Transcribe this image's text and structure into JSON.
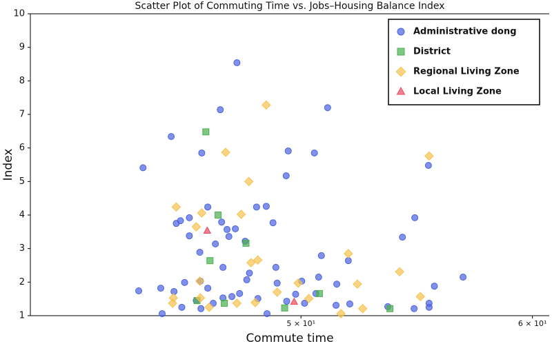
{
  "chart_data": {
    "type": "scatter",
    "title": "Scatter Plot of Commuting Time vs. Jobs–Housing Balance Index",
    "x_label": "Commute time",
    "y_label": "Index",
    "xscale": "log",
    "xlim": [
      40.4,
      60.8
    ],
    "ylim": [
      1,
      10
    ],
    "xticks": [
      {
        "value": 50,
        "label": "5 × 10¹"
      },
      {
        "value": 60,
        "label": "6 × 10¹"
      }
    ],
    "yticks": [
      1,
      2,
      3,
      4,
      5,
      6,
      7,
      8,
      9,
      10
    ],
    "legend": "upper right",
    "series": [
      {
        "name": "Administrative dong",
        "color": "#4b63e0",
        "marker": "circle",
        "x": [
          44.15,
          44.0,
          44.77,
          45.14,
          45.24,
          45.32,
          45.47,
          45.62,
          45.79,
          45.79,
          46.19,
          46.24,
          46.17,
          46.04,
          46.46,
          46.74,
          46.92,
          46.97,
          47.02,
          47.17,
          47.24,
          47.54,
          47.48,
          47.85,
          47.91,
          48.01,
          48.28,
          48.65,
          48.91,
          49.5,
          49.42,
          49.02,
          49.07,
          50.03,
          50.53,
          51.06,
          50.81,
          50.7,
          51.43,
          51.9,
          51.96,
          51.4,
          54.69,
          54.16,
          55.28,
          55.54,
          56.81,
          55.31,
          54.66,
          53.54,
          47.64,
          47.35,
          47.02,
          46.66,
          46.21,
          45.52,
          44.82,
          49.44,
          49.79,
          50.14,
          46.46,
          48.33,
          48.68,
          50.59,
          55.31
        ],
        "values": [
          5.41,
          1.74,
          1.82,
          6.34,
          1.72,
          3.75,
          3.83,
          1.99,
          3.92,
          3.38,
          2.03,
          5.85,
          2.89,
          1.45,
          4.24,
          3.14,
          7.14,
          3.79,
          2.44,
          3.57,
          3.36,
          8.54,
          3.59,
          3.22,
          2.07,
          2.27,
          4.24,
          4.26,
          3.77,
          5.91,
          5.17,
          2.44,
          1.97,
          2.03,
          5.85,
          7.2,
          2.79,
          2.15,
          1.94,
          2.64,
          1.35,
          1.31,
          3.92,
          3.34,
          5.48,
          1.88,
          2.15,
          1.37,
          1.21,
          1.27,
          1.66,
          1.57,
          1.53,
          1.37,
          1.21,
          1.25,
          1.06,
          1.43,
          1.64,
          1.37,
          1.82,
          1.51,
          1.06,
          1.66,
          1.25
        ]
      },
      {
        "name": "District",
        "color": "#4caf50",
        "marker": "square",
        "x": [
          46.39,
          46.84,
          46.54,
          47.88,
          46.07,
          47.07,
          49.36,
          50.73,
          53.63
        ],
        "values": [
          6.48,
          4.0,
          2.64,
          3.16,
          1.45,
          1.37,
          1.23,
          1.66,
          1.21
        ]
      },
      {
        "name": "Regional Living Zone",
        "color": "#f7c24f",
        "marker": "diamond",
        "x": [
          48.65,
          47.12,
          47.99,
          45.32,
          46.24,
          47.7,
          46.04,
          48.33,
          48.07,
          46.17,
          45.22,
          45.19,
          46.19,
          46.51,
          47.54,
          48.23,
          49.07,
          49.89,
          51.9,
          52.27,
          54.04,
          55.31,
          54.93,
          52.49,
          51.6,
          50.31
        ],
        "values": [
          7.28,
          5.87,
          5.0,
          4.24,
          4.06,
          4.02,
          3.65,
          2.66,
          2.58,
          2.03,
          1.53,
          1.37,
          1.53,
          1.25,
          1.37,
          1.39,
          1.7,
          1.97,
          2.85,
          1.94,
          2.31,
          5.76,
          1.57,
          1.21,
          1.06,
          1.51
        ]
      },
      {
        "name": "Local Living Zone",
        "color": "#e84a5f",
        "marker": "triangle",
        "x": [
          46.44,
          49.73
        ],
        "values": [
          3.53,
          1.41
        ]
      }
    ]
  }
}
